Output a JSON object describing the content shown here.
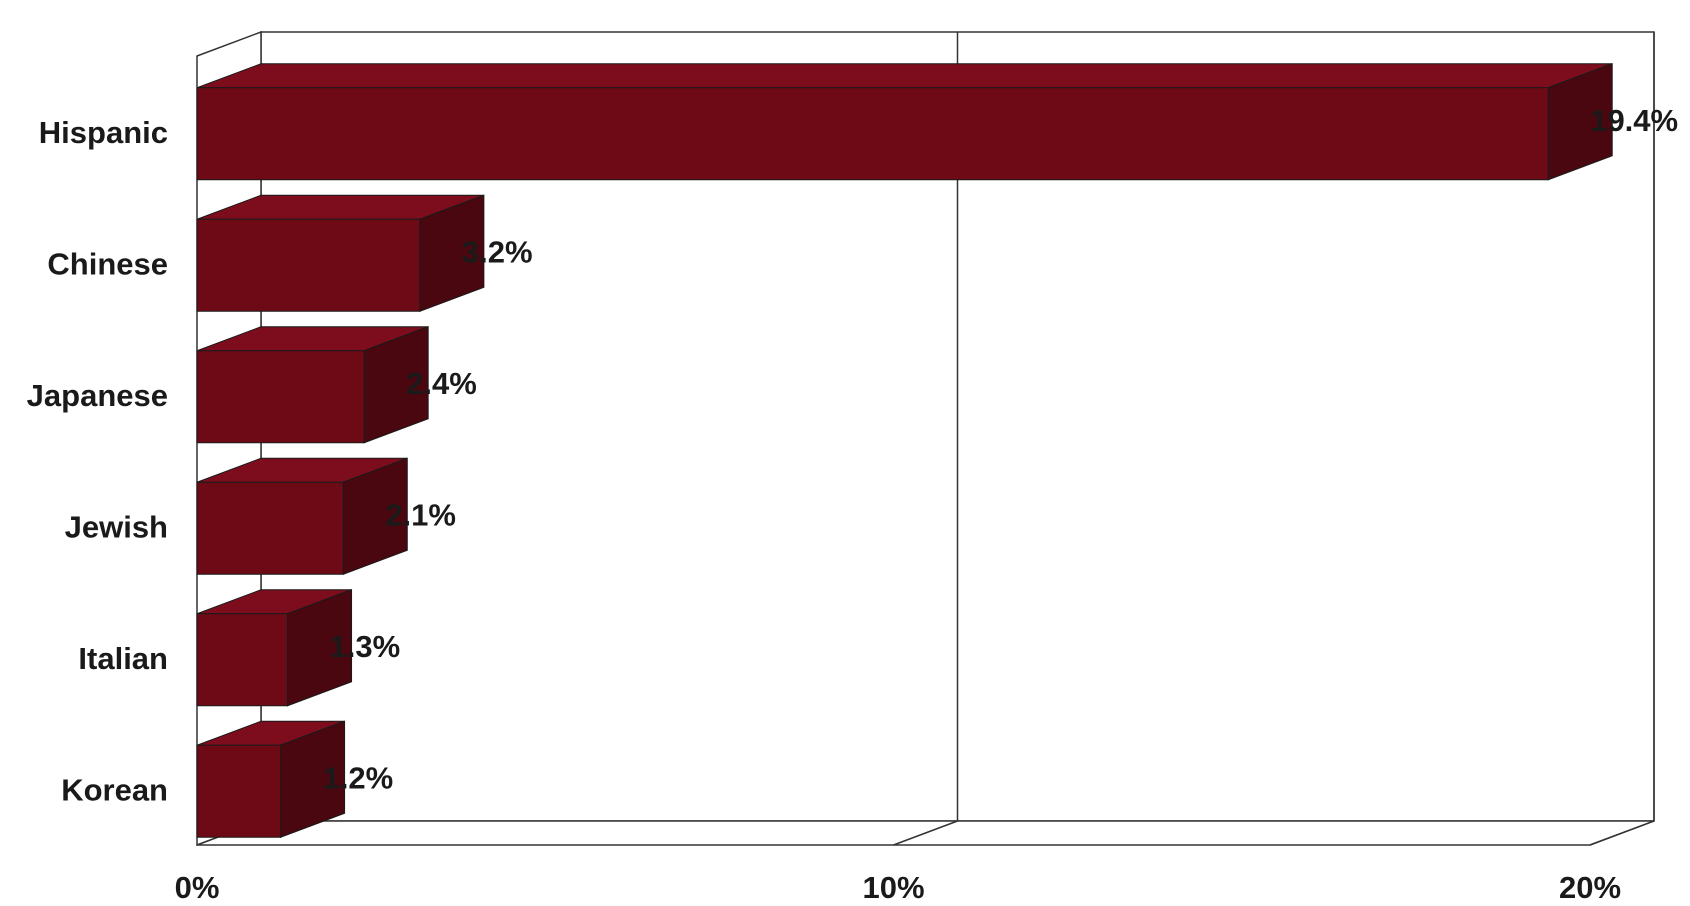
{
  "chart_data": {
    "type": "bar",
    "orientation": "horizontal",
    "three_d": true,
    "categories": [
      "Hispanic",
      "Chinese",
      "Japanese",
      "Jewish",
      "Italian",
      "Korean"
    ],
    "values": [
      19.4,
      3.2,
      2.4,
      2.1,
      1.3,
      1.2
    ],
    "value_labels": [
      "19.4%",
      "3.2%",
      "2.4%",
      "2.1%",
      "1.3%",
      "1.2%"
    ],
    "xlim": [
      0,
      20
    ],
    "ticks": [
      0,
      10,
      20
    ],
    "tick_labels": [
      "0%",
      "10%",
      "20%"
    ],
    "title": "",
    "xlabel": "",
    "ylabel": "",
    "grid": "vertical",
    "legend": "none",
    "colors": {
      "bar_front": "#6e0a16",
      "bar_top": "#7d0d1c",
      "bar_side": "#4a0710",
      "outline": "#1a1a1a",
      "frame": "#333333"
    }
  }
}
